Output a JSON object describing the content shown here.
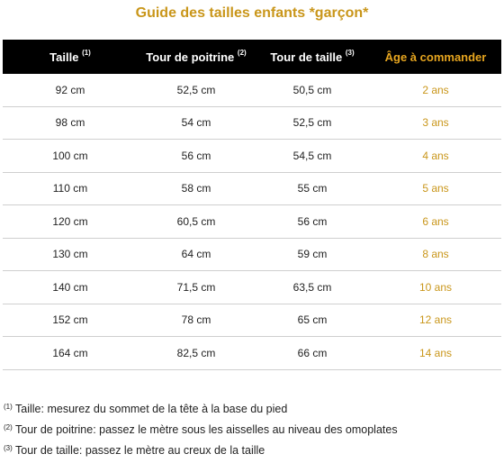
{
  "title": "Guide des tailles enfants *garçon*",
  "colors": {
    "accent": "#c9961a",
    "header_bg": "#000000",
    "header_accent": "#e6a51f"
  },
  "header": [
    {
      "label": "Taille",
      "sup": "(1)"
    },
    {
      "label": "Tour de poitrine",
      "sup": "(2)"
    },
    {
      "label": "Tour de taille",
      "sup": "(3)"
    },
    {
      "label": "Âge à commander",
      "sup": ""
    }
  ],
  "rows": [
    [
      "92 cm",
      "52,5 cm",
      "50,5 cm",
      "2 ans"
    ],
    [
      "98 cm",
      "54 cm",
      "52,5 cm",
      "3 ans"
    ],
    [
      "100 cm",
      "56 cm",
      "54,5 cm",
      "4 ans"
    ],
    [
      "110 cm",
      "58 cm",
      "55 cm",
      "5 ans"
    ],
    [
      "120 cm",
      "60,5 cm",
      "56 cm",
      "6 ans"
    ],
    [
      "130 cm",
      "64 cm",
      "59 cm",
      "8 ans"
    ],
    [
      "140 cm",
      "71,5 cm",
      "63,5 cm",
      "10 ans"
    ],
    [
      "152 cm",
      "78 cm",
      "65 cm",
      "12 ans"
    ],
    [
      "164 cm",
      "82,5 cm",
      "66 cm",
      "14 ans"
    ]
  ],
  "footnotes": [
    {
      "sup": "(1)",
      "text": " Taille: mesurez du sommet de la tête à la base du pied"
    },
    {
      "sup": "(2)",
      "text": " Tour de poitrine: passez le mètre sous les aisselles au niveau des omoplates"
    },
    {
      "sup": "(3)",
      "text": " Tour de taille: passez le mètre au creux de la taille"
    }
  ]
}
